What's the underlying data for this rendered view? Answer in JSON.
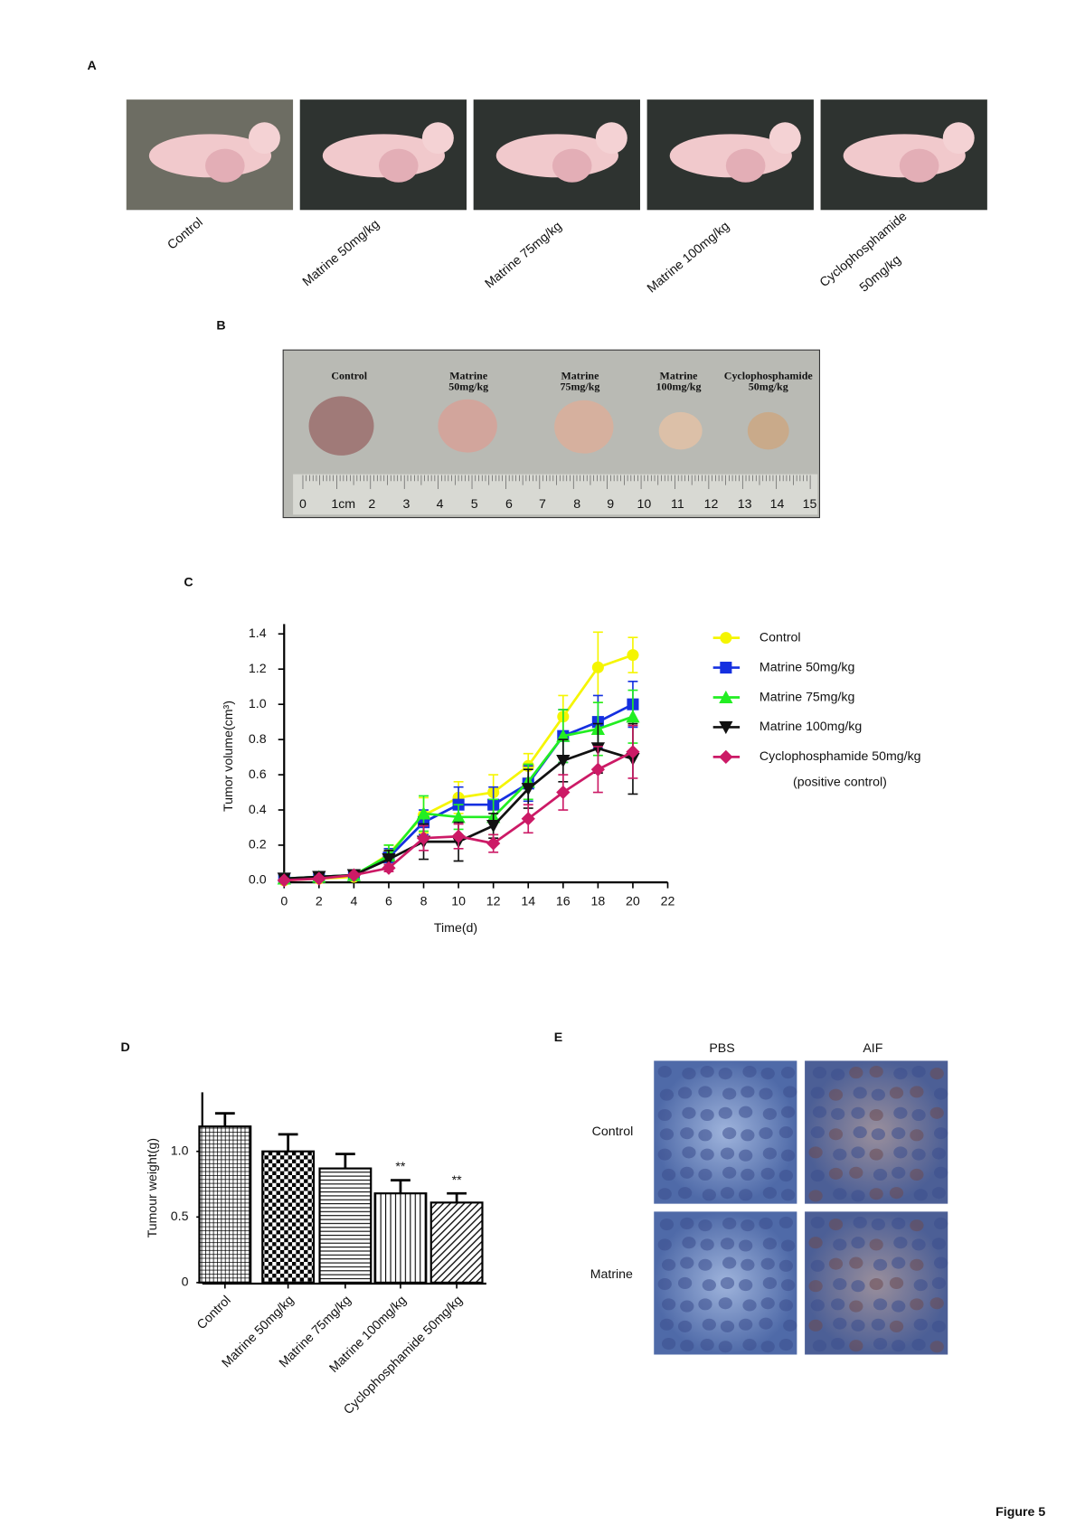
{
  "figure_title": "Figure 5",
  "panel_a": {
    "label": "A",
    "captions": [
      [
        "Control"
      ],
      [
        "Matrine 50mg/kg"
      ],
      [
        "Matrine 75mg/kg"
      ],
      [
        "Matrine 100mg/kg"
      ],
      [
        "Cyclophosphamide",
        "50mg/kg"
      ]
    ]
  },
  "panel_b": {
    "label": "B",
    "tumor_labels": [
      [
        "Control"
      ],
      [
        "Matrine",
        "50mg/kg"
      ],
      [
        "Matrine",
        "75mg/kg"
      ],
      [
        "Matrine",
        "100mg/kg"
      ],
      [
        "Cyclophosphamide",
        "50mg/kg"
      ]
    ],
    "ruler_labels": [
      "0",
      "1cm",
      "2",
      "3",
      "4",
      "5",
      "6",
      "7",
      "8",
      "9",
      "10",
      "11",
      "12",
      "13",
      "14",
      "15"
    ]
  },
  "panel_c": {
    "label": "C"
  },
  "panel_d": {
    "label": "D"
  },
  "panel_e": {
    "label": "E",
    "columns": [
      "PBS",
      "AIF"
    ],
    "rows": [
      "Control",
      "Matrine"
    ]
  },
  "chart_data": [
    {
      "type": "line",
      "x_label": "Time(d)",
      "y_label": "Tumor volume(cm³)",
      "x": [
        0,
        2,
        4,
        6,
        8,
        10,
        12,
        14,
        16,
        18,
        20
      ],
      "xlim": [
        0,
        22
      ],
      "xticks": [
        0,
        2,
        4,
        6,
        8,
        10,
        12,
        14,
        16,
        18,
        20,
        22
      ],
      "ylim": [
        0,
        1.4
      ],
      "yticks": [
        {
          "value": 0,
          "label": "0.0"
        },
        0.2,
        0.4,
        0.6,
        0.8,
        {
          "value": 1,
          "label": "1.0"
        },
        1.2,
        1.4
      ],
      "legend_note": "(positive control)",
      "series": [
        {
          "name": "Control",
          "color": "#f5f500",
          "marker": "circle",
          "values": [
            0.0,
            0.01,
            0.02,
            0.15,
            0.37,
            0.47,
            0.5,
            0.65,
            0.93,
            1.21,
            1.28
          ],
          "errors": [
            0.01,
            0.01,
            0.01,
            0.05,
            0.1,
            0.09,
            0.1,
            0.07,
            0.12,
            0.2,
            0.1
          ]
        },
        {
          "name": "Matrine 50mg/kg",
          "color": "#1530e0",
          "marker": "square",
          "values": [
            0.01,
            0.02,
            0.03,
            0.13,
            0.33,
            0.43,
            0.43,
            0.55,
            0.82,
            0.9,
            1.0
          ],
          "errors": [
            0.01,
            0.01,
            0.01,
            0.05,
            0.07,
            0.1,
            0.1,
            0.1,
            0.15,
            0.15,
            0.13
          ]
        },
        {
          "name": "Matrine 75mg/kg",
          "color": "#22ee22",
          "marker": "triangle-up",
          "values": [
            0.01,
            0.02,
            0.03,
            0.14,
            0.38,
            0.36,
            0.36,
            0.56,
            0.82,
            0.86,
            0.93
          ],
          "errors": [
            0.01,
            0.01,
            0.01,
            0.06,
            0.1,
            0.07,
            0.1,
            0.1,
            0.15,
            0.15,
            0.15
          ]
        },
        {
          "name": "Matrine 100mg/kg",
          "color": "#111111",
          "marker": "triangle-down",
          "values": [
            0.01,
            0.02,
            0.03,
            0.12,
            0.22,
            0.22,
            0.31,
            0.52,
            0.68,
            0.75,
            0.69
          ],
          "errors": [
            0.01,
            0.01,
            0.01,
            0.05,
            0.1,
            0.11,
            0.07,
            0.11,
            0.12,
            0.14,
            0.2
          ]
        },
        {
          "name": "Cyclophosphamide 50mg/kg",
          "color": "#cc1a66",
          "marker": "diamond",
          "values": [
            0.0,
            0.01,
            0.03,
            0.07,
            0.24,
            0.25,
            0.21,
            0.35,
            0.5,
            0.63,
            0.73
          ],
          "errors": [
            0.01,
            0.01,
            0.01,
            0.02,
            0.07,
            0.07,
            0.05,
            0.08,
            0.1,
            0.13,
            0.15
          ]
        }
      ]
    },
    {
      "type": "bar",
      "y_label": "Tumour weight(g)",
      "categories": [
        "Control",
        "Matrine 50mg/kg",
        "Matrine 75mg/kg",
        "Matrine 100mg/kg",
        "Cyclophosphamide 50mg/kg"
      ],
      "values": [
        1.19,
        1.0,
        0.87,
        0.68,
        0.61
      ],
      "errors": [
        0.1,
        0.13,
        0.11,
        0.1,
        0.07
      ],
      "annotations": [
        null,
        null,
        null,
        "**",
        "**"
      ],
      "patterns": [
        "crosshatch",
        "checker",
        "horizontal",
        "vertical",
        "diagonal"
      ],
      "color": "#000000",
      "ylim": [
        0,
        1.45
      ],
      "yticks": [
        0,
        0.5,
        {
          "value": 1,
          "label": "1.0"
        }
      ]
    }
  ]
}
